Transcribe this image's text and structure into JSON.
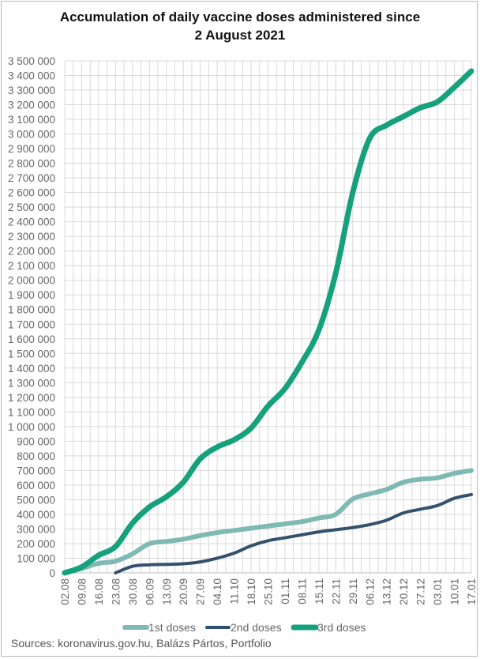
{
  "chart_data": {
    "type": "line",
    "title_lines": [
      "Accumulation of daily vaccine doses administered since",
      "2 August 2021"
    ],
    "xlabel": "",
    "ylabel": "",
    "x_tick_labels": [
      "02.08",
      "09.08",
      "16.08",
      "23.08",
      "30.08",
      "06.09",
      "13.09",
      "20.09",
      "27.09",
      "04.10",
      "11.10",
      "18.10",
      "25.10",
      "01.11",
      "08.11",
      "15.11",
      "22.11",
      "29.11",
      "06.12",
      "13.12",
      "20.12",
      "27.12",
      "03.01",
      "10.01",
      "17.01"
    ],
    "ylim": [
      0,
      3500000
    ],
    "y_ticks": [
      0,
      100000,
      200000,
      300000,
      400000,
      500000,
      600000,
      700000,
      800000,
      900000,
      1000000,
      1100000,
      1200000,
      1300000,
      1400000,
      1500000,
      1600000,
      1700000,
      1800000,
      1900000,
      2000000,
      2100000,
      2200000,
      2300000,
      2400000,
      2500000,
      2600000,
      2700000,
      2800000,
      2900000,
      3000000,
      3100000,
      3200000,
      3300000,
      3400000,
      3500000
    ],
    "y_tick_labels": [
      "0",
      "100 000",
      "200 000",
      "300 000",
      "400 000",
      "500 000",
      "600 000",
      "700 000",
      "800 000",
      "900 000",
      "1 000 000",
      "1 100 000",
      "1 200 000",
      "1 300 000",
      "1 400 000",
      "1 500 000",
      "1 600 000",
      "1 700 000",
      "1 800 000",
      "1 900 000",
      "2 000 000",
      "2 100 000",
      "2 200 000",
      "2 300 000",
      "2 400 000",
      "2 500 000",
      "2 600 000",
      "2 700 000",
      "2 800 000",
      "2 900 000",
      "3 000 000",
      "3 100 000",
      "3 200 000",
      "3 300 000",
      "3 400 000",
      "3 500 000"
    ],
    "grid": true,
    "legend_position": "bottom",
    "series": [
      {
        "name": "1st doses",
        "color": "#7fb9b3",
        "x": [
          "02.08",
          "09.08",
          "16.08",
          "23.08",
          "30.08",
          "06.09",
          "13.09",
          "20.09",
          "27.09",
          "04.10",
          "11.10",
          "18.10",
          "25.10",
          "01.11",
          "08.11",
          "15.11",
          "22.11",
          "29.11",
          "06.12",
          "13.12",
          "20.12",
          "27.12",
          "03.01",
          "10.01",
          "17.01"
        ],
        "values": [
          0,
          30000,
          65000,
          80000,
          130000,
          200000,
          215000,
          230000,
          255000,
          275000,
          290000,
          305000,
          320000,
          335000,
          350000,
          375000,
          400000,
          505000,
          540000,
          570000,
          620000,
          640000,
          650000,
          680000,
          700000
        ]
      },
      {
        "name": "2nd doses",
        "color": "#34506f",
        "x": [
          "02.08",
          "09.08",
          "16.08",
          "23.08",
          "30.08",
          "06.09",
          "13.09",
          "20.09",
          "27.09",
          "04.10",
          "11.10",
          "18.10",
          "25.10",
          "01.11",
          "08.11",
          "15.11",
          "22.11",
          "29.11",
          "06.12",
          "13.12",
          "20.12",
          "27.12",
          "03.01",
          "10.01",
          "17.01"
        ],
        "values": [
          null,
          null,
          null,
          0,
          45000,
          55000,
          58000,
          62000,
          75000,
          100000,
          135000,
          185000,
          220000,
          240000,
          260000,
          280000,
          295000,
          310000,
          330000,
          360000,
          410000,
          435000,
          460000,
          510000,
          535000
        ]
      },
      {
        "name": "3rd doses",
        "color": "#15a17b",
        "x": [
          "02.08",
          "09.08",
          "16.08",
          "23.08",
          "30.08",
          "06.09",
          "13.09",
          "20.09",
          "27.09",
          "04.10",
          "11.10",
          "18.10",
          "25.10",
          "01.11",
          "08.11",
          "15.11",
          "22.11",
          "29.11",
          "06.12",
          "13.12",
          "20.12",
          "27.12",
          "03.01",
          "10.01",
          "17.01"
        ],
        "values": [
          0,
          40000,
          120000,
          180000,
          340000,
          450000,
          520000,
          620000,
          780000,
          860000,
          910000,
          990000,
          1140000,
          1260000,
          1440000,
          1660000,
          2050000,
          2600000,
          2970000,
          3060000,
          3120000,
          3180000,
          3220000,
          3320000,
          3430000
        ]
      }
    ]
  },
  "source": "Sources: koronavirus.gov.hu, Balázs Pártos, Portfolio"
}
